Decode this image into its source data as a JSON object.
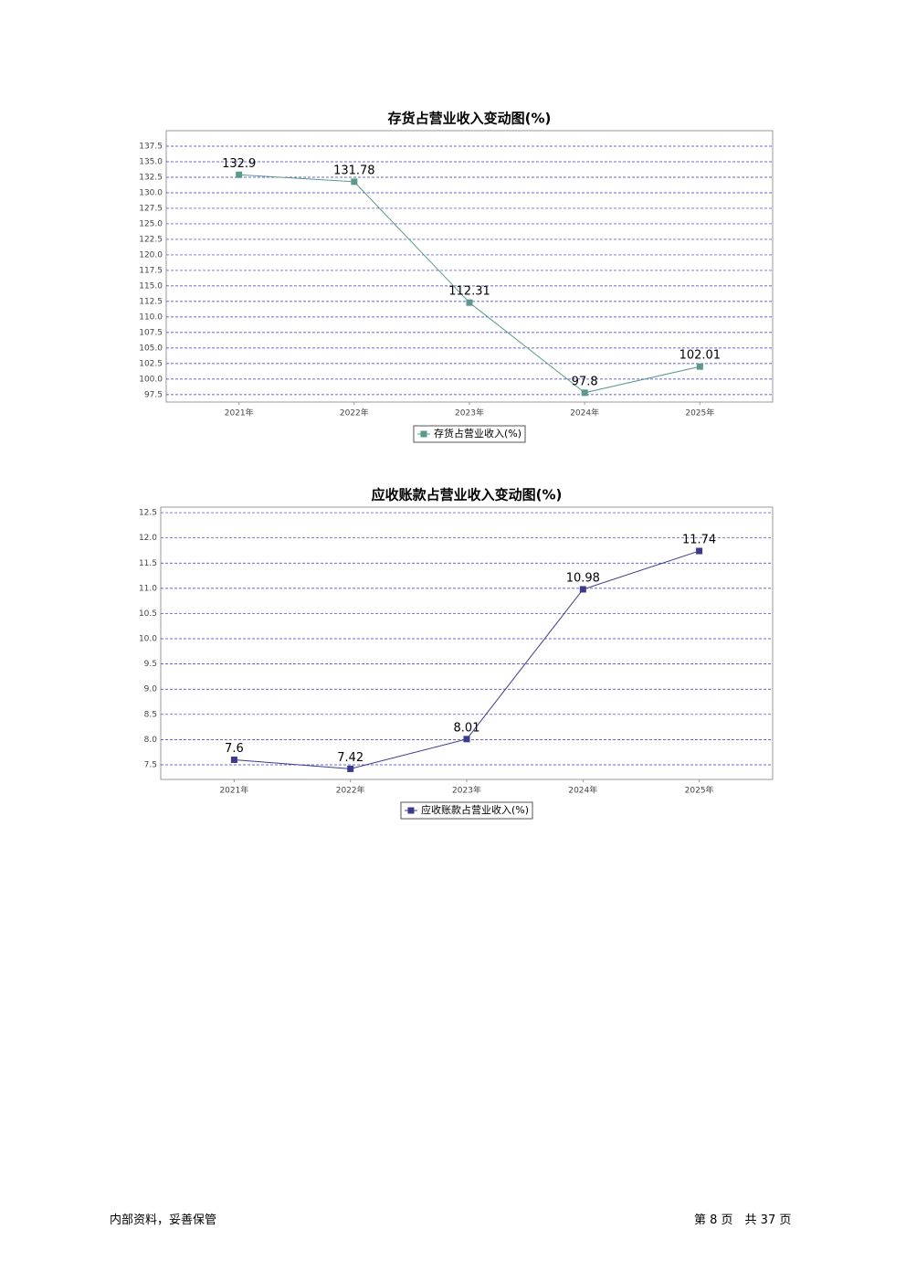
{
  "chart_data": [
    {
      "type": "line",
      "title": "存货占营业收入变动图(%)",
      "categories": [
        "2021年",
        "2022年",
        "2023年",
        "2024年",
        "2025年"
      ],
      "series": [
        {
          "name": "存货占营业收入(%)",
          "color": "#5b9a8b",
          "values": [
            132.9,
            131.78,
            112.31,
            97.8,
            102.01
          ]
        }
      ],
      "ylim": [
        96.3,
        140
      ],
      "yticks": [
        97.5,
        {
          "value": 100,
          "label": "100.0"
        },
        102.5,
        {
          "value": 105,
          "label": "105.0"
        },
        107.5,
        {
          "value": 110,
          "label": "110.0"
        },
        112.5,
        {
          "value": 115,
          "label": "115.0"
        },
        117.5,
        {
          "value": 120,
          "label": "120.0"
        },
        122.5,
        {
          "value": 125,
          "label": "125.0"
        },
        127.5,
        {
          "value": 130,
          "label": "130.0"
        },
        132.5,
        {
          "value": 135,
          "label": "135.0"
        },
        137.5
      ],
      "grid": true,
      "legend": "bottom"
    },
    {
      "type": "line",
      "title": "应收账款占营业收入变动图(%)",
      "categories": [
        "2021年",
        "2022年",
        "2023年",
        "2024年",
        "2025年"
      ],
      "series": [
        {
          "name": "应收账款占营业收入(%)",
          "color": "#3b3a8c",
          "values": [
            7.6,
            7.42,
            8.01,
            10.98,
            11.74
          ]
        }
      ],
      "ylim": [
        7.21,
        12.61
      ],
      "yticks": [
        7.5,
        {
          "value": 8,
          "label": "8.0"
        },
        8.5,
        {
          "value": 9,
          "label": "9.0"
        },
        9.5,
        {
          "value": 10,
          "label": "10.0"
        },
        10.5,
        {
          "value": 11,
          "label": "11.0"
        },
        11.5,
        {
          "value": 12,
          "label": "12.0"
        },
        12.5
      ],
      "grid": true,
      "legend": "bottom"
    }
  ],
  "footer": {
    "left": "内部资料，妥善保管",
    "right": "第 8 页　共 37 页"
  }
}
